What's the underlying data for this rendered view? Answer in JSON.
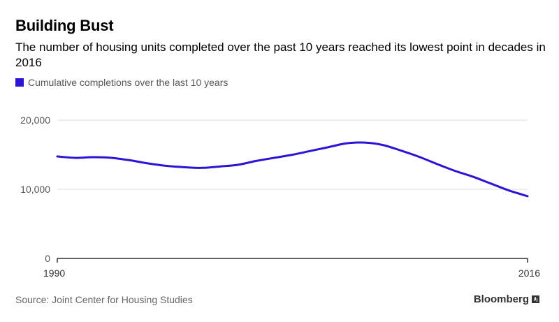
{
  "header": {
    "title": "Building Bust",
    "subtitle": "The number of housing units completed over the past 10 years reached its lowest point in decades in 2016"
  },
  "legend": {
    "label": "Cumulative completions over the last 10 years",
    "color": "#2b14d4"
  },
  "footer": {
    "source": "Source: Joint Center for Housing Studies",
    "brand": "Bloomberg"
  },
  "chart_data": {
    "type": "line",
    "title": "Building Bust",
    "subtitle": "The number of housing units completed over the past 10 years reached its lowest point in decades in 2016",
    "xlabel": "",
    "ylabel": "",
    "xlim": [
      1990,
      2016
    ],
    "ylim": [
      0,
      20000
    ],
    "x_tick_labels": [
      "1990",
      "2016"
    ],
    "y_tick_labels": [
      "0",
      "10,000",
      "20,000"
    ],
    "y_ticks": [
      0,
      10000,
      20000
    ],
    "grid": "horizontal",
    "legend_position": "top-left",
    "series": [
      {
        "name": "Cumulative completions over the last 10 years",
        "color": "#2b14d4",
        "x": [
          1990,
          1991,
          1992,
          1993,
          1994,
          1995,
          1996,
          1997,
          1998,
          1999,
          2000,
          2001,
          2002,
          2003,
          2004,
          2005,
          2006,
          2007,
          2008,
          2009,
          2010,
          2011,
          2012,
          2013,
          2014,
          2015,
          2016
        ],
        "values": [
          14750,
          14550,
          14650,
          14550,
          14200,
          13750,
          13400,
          13200,
          13100,
          13300,
          13550,
          14100,
          14550,
          15000,
          15550,
          16100,
          16650,
          16750,
          16400,
          15600,
          14700,
          13650,
          12650,
          11800,
          10800,
          9800,
          9000
        ]
      }
    ]
  }
}
